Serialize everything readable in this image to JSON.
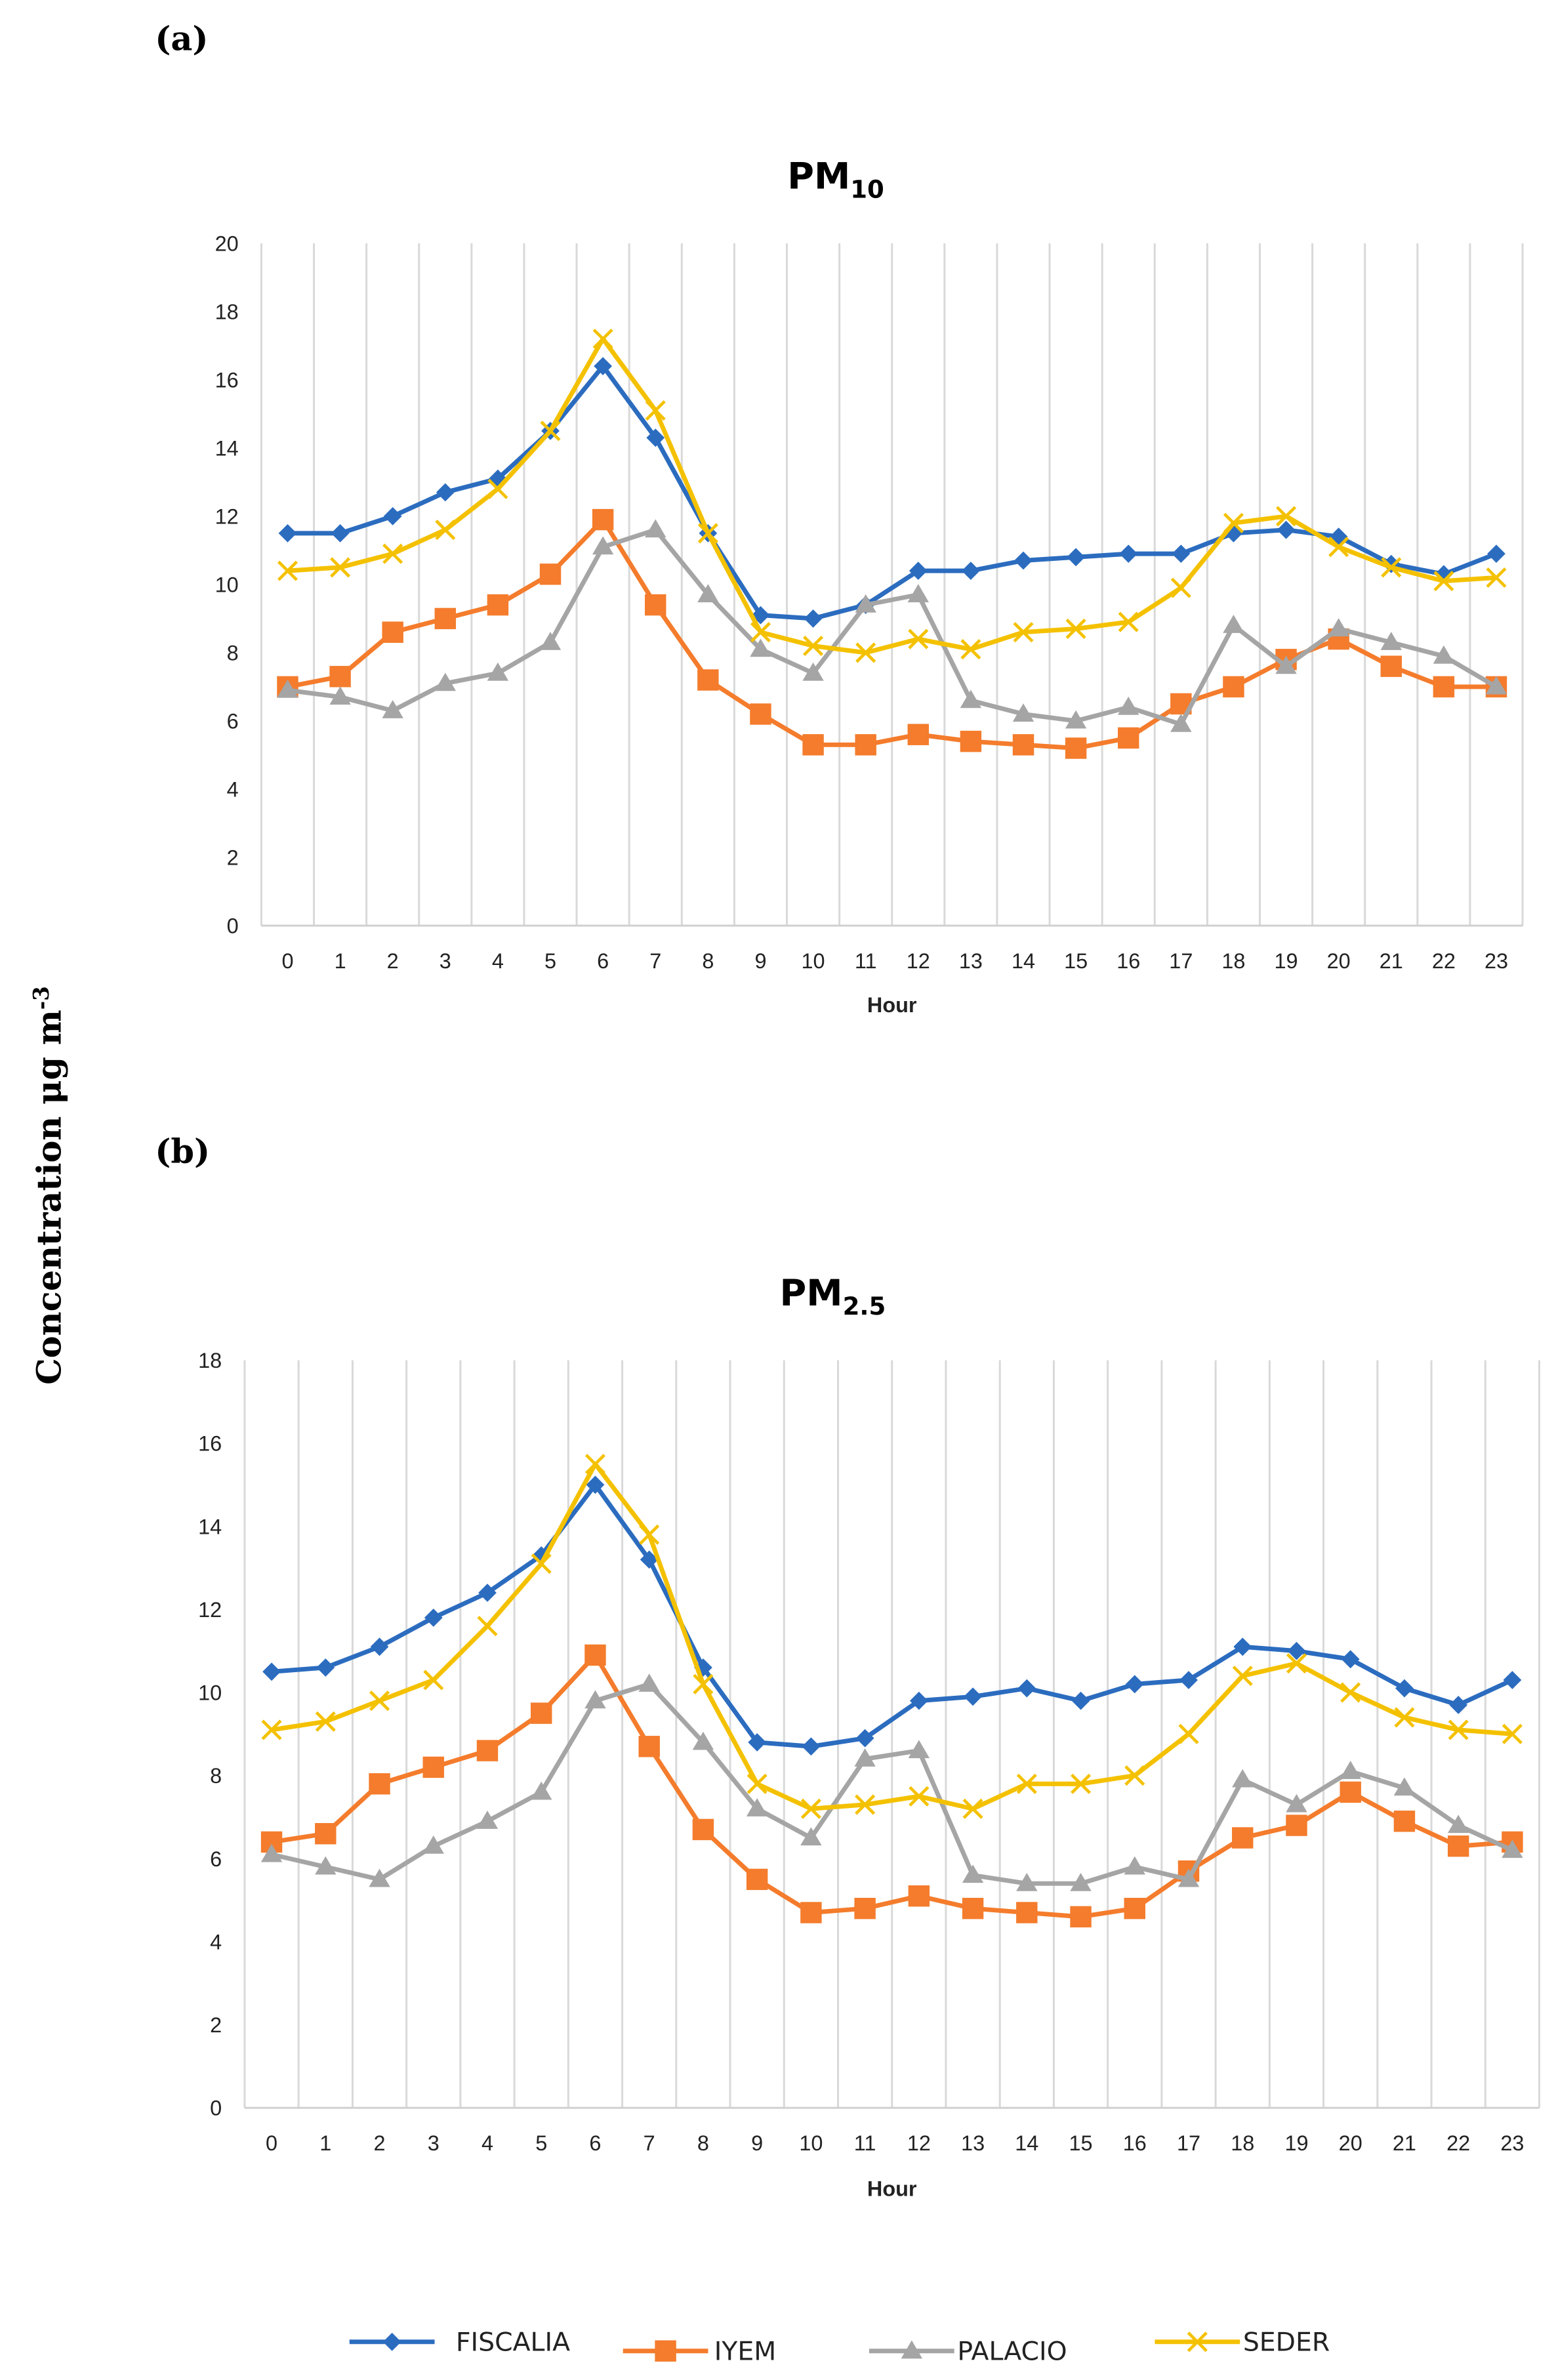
{
  "ylabel_main": "Concentration μg m",
  "ylabel_sup": "-3",
  "colors": {
    "FISCALIA": "#2b6cbf",
    "IYEM": "#f47c2c",
    "PALACIO": "#a5a5a5",
    "SEDER": "#f4c100"
  },
  "legend": [
    "FISCALIA",
    "IYEM",
    "PALACIO",
    "SEDER"
  ],
  "chart_data": [
    {
      "type": "line",
      "panel": "(a)",
      "title_main": "PM",
      "title_sub": "10",
      "xlabel": "Hour",
      "ylabel": "Concentration μg m-3",
      "ylim": [
        0,
        20
      ],
      "yticks": [
        0,
        2,
        4,
        6,
        8,
        10,
        12,
        14,
        16,
        18,
        20
      ],
      "categories": [
        "0",
        "1",
        "2",
        "3",
        "4",
        "5",
        "6",
        "7",
        "8",
        "9",
        "10",
        "11",
        "12",
        "13",
        "14",
        "15",
        "16",
        "17",
        "18",
        "19",
        "20",
        "21",
        "22",
        "23"
      ],
      "grid": "vertical",
      "series": [
        {
          "name": "FISCALIA",
          "marker": "diamond",
          "values": [
            11.5,
            11.5,
            12.0,
            12.7,
            13.1,
            14.5,
            16.4,
            14.3,
            11.5,
            9.1,
            9.0,
            9.4,
            10.4,
            10.4,
            10.7,
            10.8,
            10.9,
            10.9,
            11.5,
            11.6,
            11.4,
            10.6,
            10.3,
            10.9
          ]
        },
        {
          "name": "IYEM",
          "marker": "square",
          "values": [
            7.0,
            7.3,
            8.6,
            9.0,
            9.4,
            10.3,
            11.9,
            9.4,
            7.2,
            6.2,
            5.3,
            5.3,
            5.6,
            5.4,
            5.3,
            5.2,
            5.5,
            6.5,
            7.0,
            7.8,
            8.4,
            7.6,
            7.0,
            7.0
          ]
        },
        {
          "name": "PALACIO",
          "marker": "triangle",
          "values": [
            6.9,
            6.7,
            6.3,
            7.1,
            7.4,
            8.3,
            11.1,
            11.6,
            9.7,
            8.1,
            7.4,
            9.4,
            9.7,
            6.6,
            6.2,
            6.0,
            6.4,
            5.9,
            8.8,
            7.6,
            8.7,
            8.3,
            7.9,
            7.0
          ]
        },
        {
          "name": "SEDER",
          "marker": "x",
          "values": [
            10.4,
            10.5,
            10.9,
            11.6,
            12.8,
            14.5,
            17.2,
            15.1,
            11.5,
            8.6,
            8.2,
            8.0,
            8.4,
            8.1,
            8.6,
            8.7,
            8.9,
            9.9,
            11.8,
            12.0,
            11.1,
            10.5,
            10.1,
            10.2
          ]
        }
      ]
    },
    {
      "type": "line",
      "panel": "(b)",
      "title_main": "PM",
      "title_sub": "2.5",
      "xlabel": "Hour",
      "ylabel": "Concentration μg m-3",
      "ylim": [
        0,
        18
      ],
      "yticks": [
        0,
        2,
        4,
        6,
        8,
        10,
        12,
        14,
        16,
        18
      ],
      "categories": [
        "0",
        "1",
        "2",
        "3",
        "4",
        "5",
        "6",
        "7",
        "8",
        "9",
        "10",
        "11",
        "12",
        "13",
        "14",
        "15",
        "16",
        "17",
        "18",
        "19",
        "20",
        "21",
        "22",
        "23"
      ],
      "grid": "vertical",
      "series": [
        {
          "name": "FISCALIA",
          "marker": "diamond",
          "values": [
            10.5,
            10.6,
            11.1,
            11.8,
            12.4,
            13.3,
            15.0,
            13.2,
            10.6,
            8.8,
            8.7,
            8.9,
            9.8,
            9.9,
            10.1,
            9.8,
            10.2,
            10.3,
            11.1,
            11.0,
            10.8,
            10.1,
            9.7,
            10.3
          ]
        },
        {
          "name": "IYEM",
          "marker": "square",
          "values": [
            6.4,
            6.6,
            7.8,
            8.2,
            8.6,
            9.5,
            10.9,
            8.7,
            6.7,
            5.5,
            4.7,
            4.8,
            5.1,
            4.8,
            4.7,
            4.6,
            4.8,
            5.7,
            6.5,
            6.8,
            7.6,
            6.9,
            6.3,
            6.4
          ]
        },
        {
          "name": "PALACIO",
          "marker": "triangle",
          "values": [
            6.1,
            5.8,
            5.5,
            6.3,
            6.9,
            7.6,
            9.8,
            10.2,
            8.8,
            7.2,
            6.5,
            8.4,
            8.6,
            5.6,
            5.4,
            5.4,
            5.8,
            5.5,
            7.9,
            7.3,
            8.1,
            7.7,
            6.8,
            6.2
          ]
        },
        {
          "name": "SEDER",
          "marker": "x",
          "values": [
            9.1,
            9.3,
            9.8,
            10.3,
            11.6,
            13.1,
            15.5,
            13.8,
            10.2,
            7.8,
            7.2,
            7.3,
            7.5,
            7.2,
            7.8,
            7.8,
            8.0,
            9.0,
            10.4,
            10.7,
            10.0,
            9.4,
            9.1,
            9.0
          ]
        }
      ]
    }
  ]
}
